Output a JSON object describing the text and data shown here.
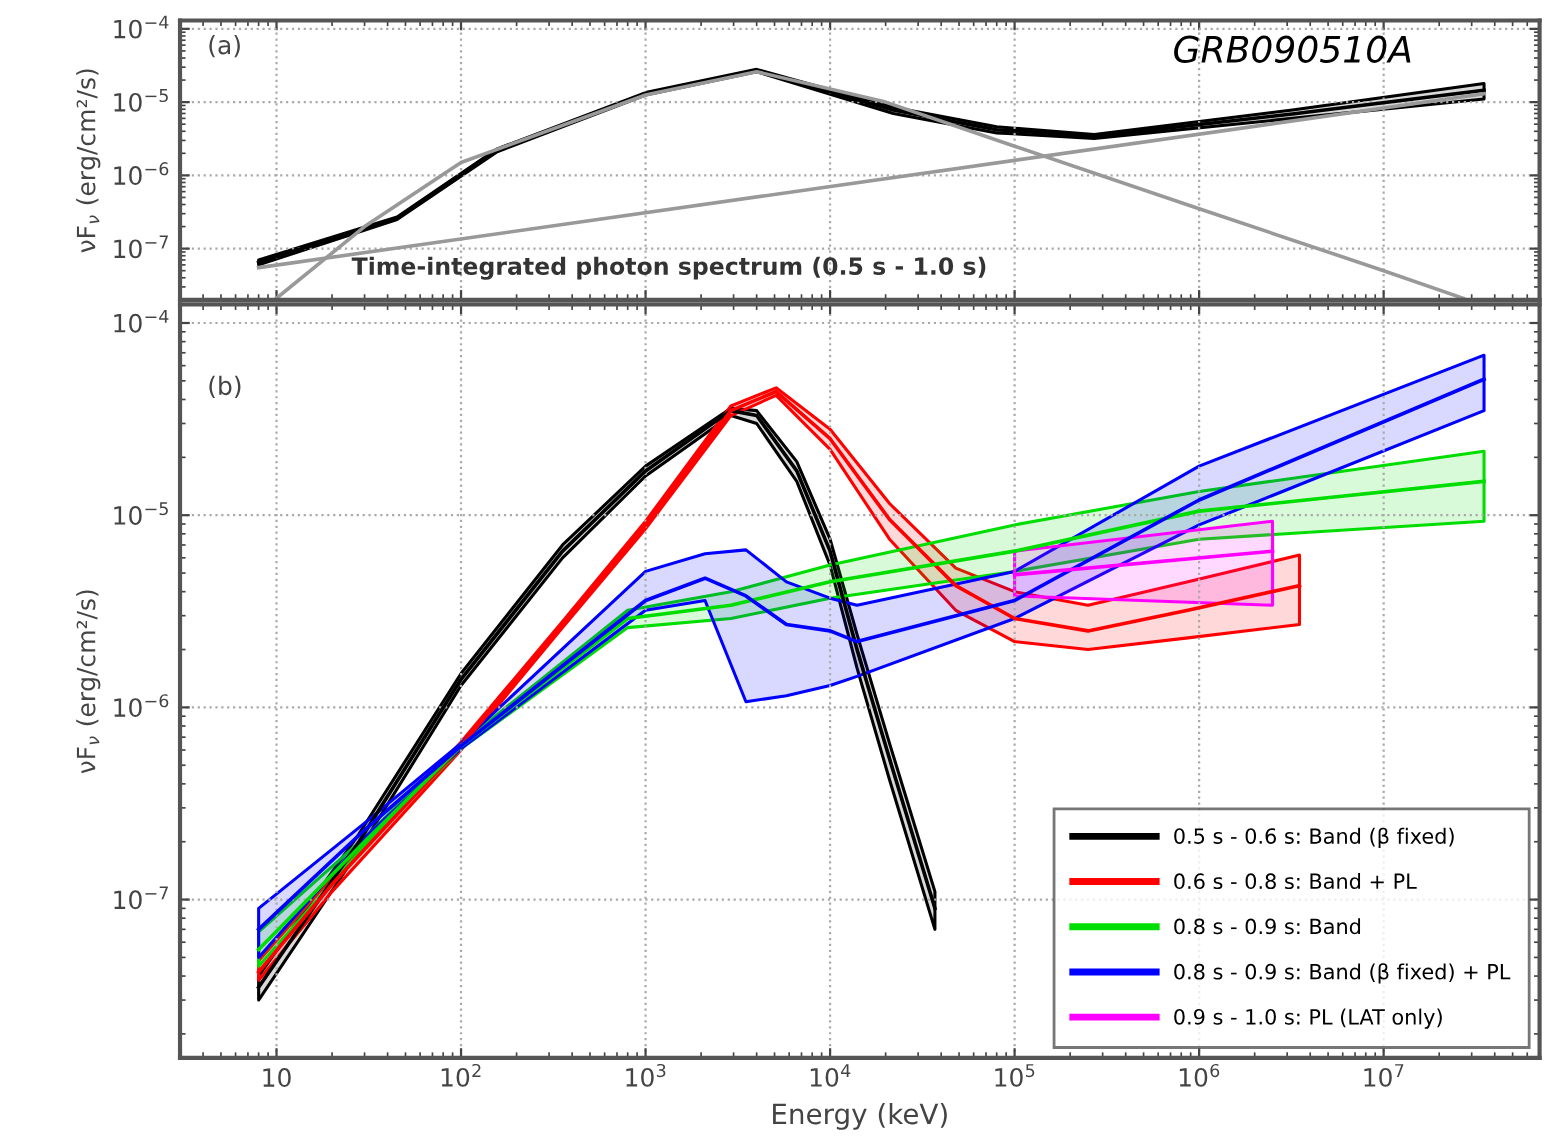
{
  "chart_data": [
    {
      "type": "line",
      "annotations": [
        "(a)",
        "GRB090510A",
        "Time-integrated photon spectrum (0.5 s - 1.0 s)"
      ],
      "ylabel": "νF$_{ν}$ (erg/cm²/s)",
      "log": "xy",
      "grid": true,
      "legend": false,
      "tick_labels": "y",
      "xlim": [
        3,
        70000000
      ],
      "ylim": [
        2e-08,
        0.00013
      ],
      "xticks": [
        {
          "value": 10,
          "label": null
        },
        {
          "value": 100,
          "label": null
        },
        {
          "value": 1000,
          "label": null
        },
        {
          "value": 10000,
          "label": null
        },
        {
          "value": 100000,
          "label": null
        },
        {
          "value": 1000000,
          "label": null
        },
        {
          "value": 10000000,
          "label": null
        }
      ],
      "yticks": [
        {
          "value": 1e-07,
          "label": "10$^{−7}$"
        },
        {
          "value": 1e-06,
          "label": "10$^{−6}$"
        },
        {
          "value": 1e-05,
          "label": "10$^{−5}$"
        },
        {
          "value": 0.0001,
          "label": "10$^{−4}$"
        }
      ],
      "series": [
        {
          "color": "#000000",
          "x": [
            8,
            45,
            157,
            1000,
            4000,
            22000,
            80000,
            270000,
            3200000,
            35000000
          ],
          "values": [
            6.5e-08,
            2.6e-07,
            2.2e-06,
            1.3e-05,
            2.7e-05,
            7.8e-06,
            4.2e-06,
            3.4e-06,
            6.9e-06,
            1.45e-05
          ],
          "lower": [
            6e-08,
            2.5e-07,
            2.1e-06,
            1.25e-05,
            2.6e-05,
            7e-06,
            3.8e-06,
            3.2e-06,
            6e-06,
            1.1e-05
          ],
          "upper": [
            7e-08,
            2.7e-07,
            2.3e-06,
            1.35e-05,
            2.8e-05,
            8.5e-06,
            4.6e-06,
            3.6e-06,
            7.8e-06,
            1.8e-05
          ]
        },
        {
          "color": "#999999",
          "x": [
            10,
            30,
            100,
            1000,
            4000,
            20000,
            100000,
            1000000,
            10000000,
            27000000
          ],
          "values": [
            2.1e-08,
            2e-07,
            1.5e-06,
            1.25e-05,
            2.6e-05,
            1e-05,
            2.5e-06,
            3.5e-07,
            5e-08,
            2.1e-08
          ]
        },
        {
          "color": "#999999",
          "x": [
            8,
            35000000
          ],
          "values": [
            5.5e-08,
            1.3e-05
          ]
        }
      ]
    },
    {
      "type": "line",
      "annotations": [
        "(b)"
      ],
      "xlabel": "Energy (keV)",
      "ylabel": "νF$_{ν}$ (erg/cm²/s)",
      "log": "xy",
      "grid": true,
      "legend": "bottom right",
      "xlim": [
        3,
        70000000
      ],
      "ylim": [
        1.5e-08,
        0.000125
      ],
      "xticks": [
        {
          "value": 10,
          "label": "10"
        },
        {
          "value": 100,
          "label": "10$^{2}$"
        },
        {
          "value": 1000,
          "label": "10$^{3}$"
        },
        {
          "value": 10000,
          "label": "10$^{4}$"
        },
        {
          "value": 100000,
          "label": "10$^{5}$"
        },
        {
          "value": 1000000,
          "label": "10$^{6}$"
        },
        {
          "value": 10000000,
          "label": "10$^{7}$"
        }
      ],
      "yticks": [
        {
          "value": 1e-07,
          "label": "10$^{−7}$"
        },
        {
          "value": 1e-06,
          "label": "10$^{−6}$"
        },
        {
          "value": 1e-05,
          "label": "10$^{−5}$"
        },
        {
          "value": 0.0001,
          "label": "10$^{−4}$"
        }
      ],
      "series": [
        {
          "name": "0.5 s - 0.6 s: Band (β fixed)",
          "color": "#000000",
          "x": [
            8,
            28,
            100,
            355,
            1000,
            2900,
            4000,
            6600,
            10000,
            14000,
            21000,
            37000
          ],
          "values": [
            3.5e-08,
            2e-07,
            1.4e-06,
            6.5e-06,
            1.7e-05,
            3.5e-05,
            3.3e-05,
            1.7e-05,
            6.5e-06,
            2e-06,
            5.4e-07,
            9e-08
          ],
          "lower": [
            3e-08,
            1.8e-07,
            1.3e-06,
            6e-06,
            1.6e-05,
            3.3e-05,
            3e-05,
            1.5e-05,
            5.5e-06,
            1.6e-06,
            4.2e-07,
            7e-08
          ],
          "upper": [
            4e-08,
            2.2e-07,
            1.5e-06,
            7e-06,
            1.8e-05,
            3.6e-05,
            3.5e-05,
            1.9e-05,
            7.5e-06,
            2.4e-06,
            6.5e-07,
            1.1e-07
          ]
        },
        {
          "name": "0.6 s - 0.8 s: Band + PL",
          "color": "#ff0000",
          "x": [
            8,
            20,
            100,
            355,
            1000,
            2900,
            5100,
            10000,
            21000,
            48000,
            100000,
            250000,
            870000,
            3500000
          ],
          "values": [
            4.2e-08,
            1.2e-07,
            6.3e-07,
            2.7e-06,
            8.9e-06,
            3.5e-05,
            4.4e-05,
            2.5e-05,
            9.5e-06,
            4.3e-06,
            2.9e-06,
            2.5e-06,
            3.2e-06,
            4.3e-06
          ],
          "lower": [
            3.8e-08,
            1.1e-07,
            6e-07,
            2.6e-06,
            8.5e-06,
            3.3e-05,
            4.2e-05,
            2.2e-05,
            7.5e-06,
            3.2e-06,
            2.2e-06,
            2e-06,
            2.3e-06,
            2.7e-06
          ],
          "upper": [
            4.8e-08,
            1.3e-07,
            6.6e-07,
            2.8e-06,
            9.3e-06,
            3.7e-05,
            4.6e-05,
            2.8e-05,
            1.15e-05,
            5.3e-06,
            4e-06,
            3.4e-06,
            4.5e-06,
            6.2e-06
          ]
        },
        {
          "name": "0.8 s - 0.9 s: Band",
          "color": "#00dd00",
          "x": [
            8,
            30,
            100,
            800,
            2900,
            10000,
            100000,
            1000000,
            35000000
          ],
          "values": [
            5.5e-08,
            2e-07,
            6.3e-07,
            2.9e-06,
            3.4e-06,
            4.5e-06,
            6.5e-06,
            1.05e-05,
            1.5e-05
          ],
          "lower": [
            4.5e-08,
            1.9e-07,
            6.1e-07,
            2.6e-06,
            2.9e-06,
            3.7e-06,
            5.1e-06,
            7.5e-06,
            9.3e-06
          ],
          "upper": [
            6.8e-08,
            2.1e-07,
            6.5e-07,
            3.2e-06,
            4e-06,
            5.5e-06,
            8.9e-06,
            1.33e-05,
            2.15e-05
          ]
        },
        {
          "name": "0.8 s - 0.9 s: Band (β fixed) + PL",
          "color": "#0000ff",
          "x": [
            8,
            30,
            100,
            1000,
            2100,
            3500,
            5800,
            10000,
            14000,
            100000,
            1000000,
            35000000
          ],
          "values": [
            7e-08,
            2.3e-07,
            6.3e-07,
            3.6e-06,
            4.7e-06,
            3.8e-06,
            2.7e-06,
            2.5e-06,
            2.2e-06,
            3.6e-06,
            1.2e-05,
            5.1e-05
          ],
          "lower": [
            5e-08,
            2.1e-07,
            6.1e-07,
            3.2e-06,
            3.6e-06,
            1.07e-06,
            1.15e-06,
            1.3e-06,
            1.45e-06,
            2.9e-06,
            8.9e-06,
            3.5e-05
          ],
          "upper": [
            9e-08,
            2.5e-07,
            6.5e-07,
            5.1e-06,
            6.3e-06,
            6.6e-06,
            4.5e-06,
            3.7e-06,
            3.4e-06,
            5.1e-06,
            1.8e-05,
            6.8e-05
          ]
        },
        {
          "name": "0.9 s - 1.0 s: PL (LAT only)",
          "color": "#ff00ff",
          "x": [
            100000,
            2500000
          ],
          "values": [
            4.9e-06,
            6.5e-06
          ],
          "lower": [
            3.8e-06,
            3.4e-06
          ],
          "upper": [
            6.5e-06,
            9.3e-06
          ]
        }
      ]
    }
  ]
}
